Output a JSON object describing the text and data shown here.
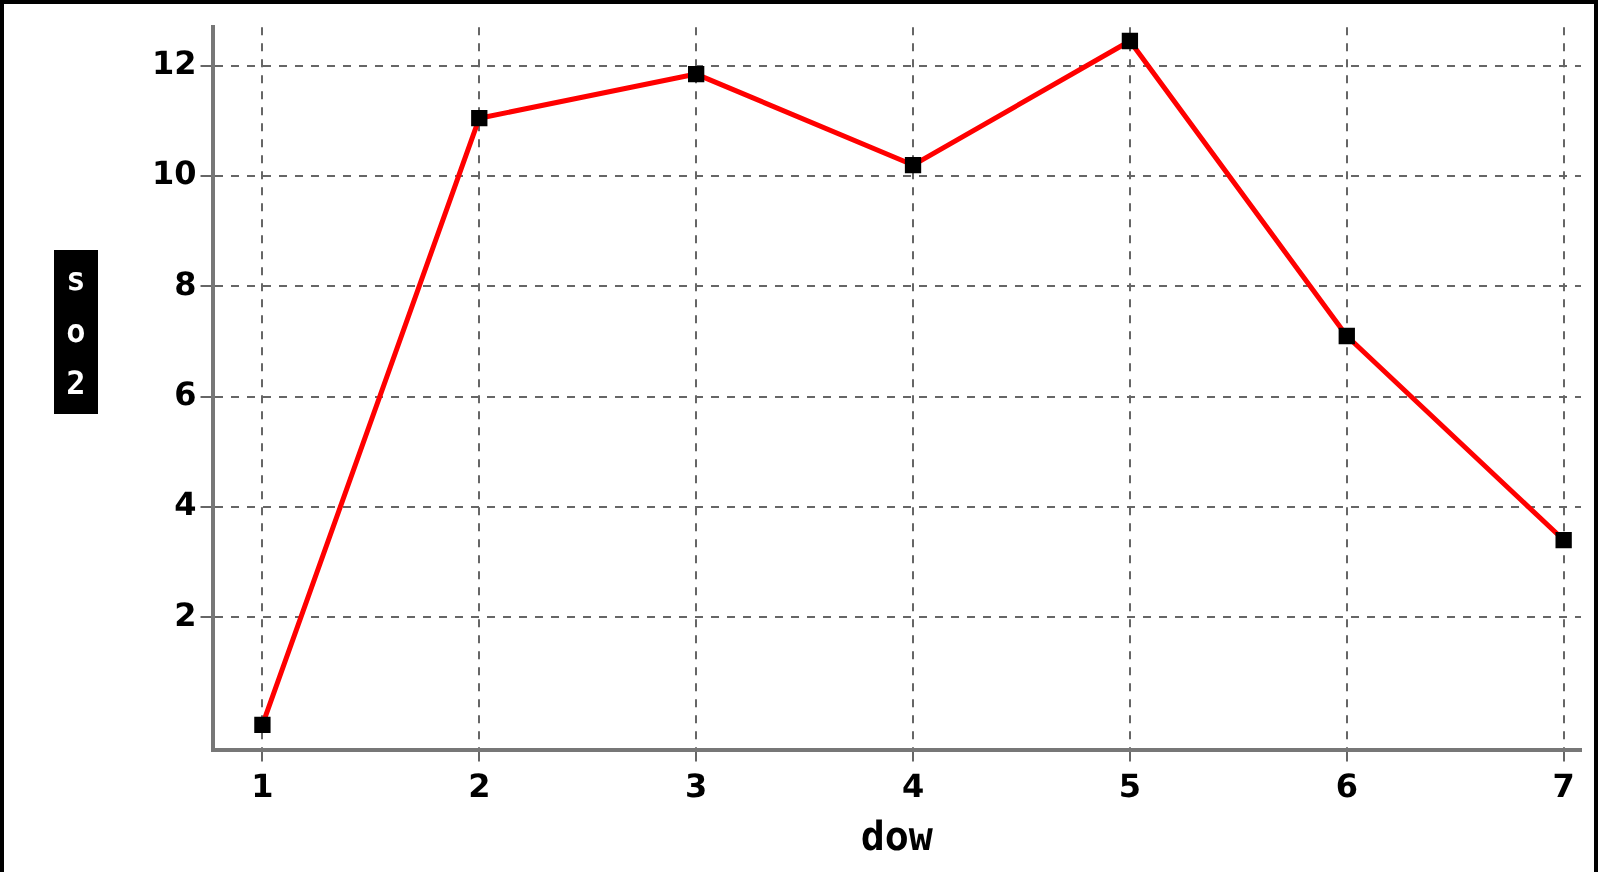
{
  "chart_data": {
    "type": "line",
    "xlabel": "dow",
    "ylabel": "so2",
    "x": [
      1,
      2,
      3,
      4,
      5,
      6,
      7
    ],
    "series": [
      {
        "color": "#ff0000",
        "values": [
          0.05,
          11.05,
          11.85,
          10.2,
          12.45,
          7.1,
          3.4
        ]
      }
    ],
    "xlim": [
      0.77,
      7.08
    ],
    "xticks": [
      1,
      2,
      3,
      4,
      5,
      6,
      7
    ],
    "ylim": [
      -0.4,
      12.7
    ],
    "yticks": [
      2,
      4,
      6,
      8,
      10,
      12
    ],
    "grid": true,
    "legend": false,
    "marker": "square",
    "line_style": "solid"
  }
}
